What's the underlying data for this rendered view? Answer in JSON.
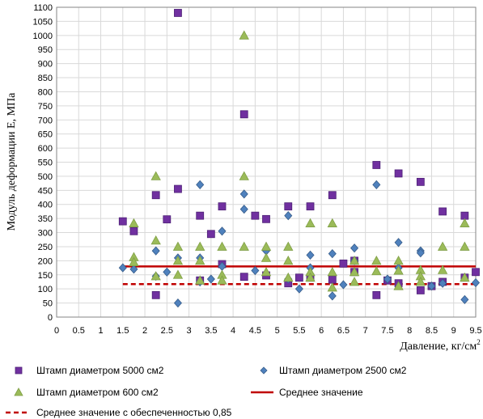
{
  "chart_data": {
    "type": "scatter",
    "xlabel": "Давление, кг/см",
    "xlabel_sup": "2",
    "ylabel": "Модуль деформации Е, МПа",
    "xlim": [
      0,
      9.5
    ],
    "ylim": [
      0,
      1100
    ],
    "x_ticks": [
      "0",
      "0.5",
      "1",
      "1.5",
      "2",
      "2.5",
      "3",
      "3.5",
      "4",
      "4.5",
      "5",
      "5.5",
      "6",
      "6.5",
      "7",
      "7.5",
      "8",
      "8.5",
      "9",
      "9.5"
    ],
    "y_ticks": [
      "0",
      "50",
      "100",
      "150",
      "200",
      "250",
      "300",
      "350",
      "400",
      "450",
      "500",
      "550",
      "600",
      "650",
      "700",
      "750",
      "800",
      "850",
      "900",
      "950",
      "1000",
      "1050",
      "1100"
    ],
    "grid": "vertical and horizontal gridlines",
    "legend_position": "bottom",
    "series": [
      {
        "name": "Штамп диаметром 5000 см2",
        "marker": "square",
        "color": "#7030a0",
        "stroke": "#4e2276",
        "points": [
          [
            1.5,
            340
          ],
          [
            1.75,
            305
          ],
          [
            2.25,
            433
          ],
          [
            2.25,
            78
          ],
          [
            2.5,
            347
          ],
          [
            2.75,
            1080
          ],
          [
            2.75,
            455
          ],
          [
            3.25,
            360
          ],
          [
            3.25,
            130
          ],
          [
            3.5,
            295
          ],
          [
            3.75,
            393
          ],
          [
            3.75,
            188
          ],
          [
            4.25,
            720
          ],
          [
            4.25,
            143
          ],
          [
            4.5,
            360
          ],
          [
            4.75,
            348
          ],
          [
            4.75,
            148
          ],
          [
            5.25,
            393
          ],
          [
            5.25,
            120
          ],
          [
            5.5,
            140
          ],
          [
            5.75,
            393
          ],
          [
            5.75,
            140
          ],
          [
            6.25,
            433
          ],
          [
            6.25,
            133
          ],
          [
            6.5,
            190
          ],
          [
            6.75,
            200
          ],
          [
            6.75,
            160
          ],
          [
            7.25,
            540
          ],
          [
            7.25,
            78
          ],
          [
            7.5,
            130
          ],
          [
            7.75,
            510
          ],
          [
            7.75,
            120
          ],
          [
            8.25,
            480
          ],
          [
            8.25,
            95
          ],
          [
            8.5,
            110
          ],
          [
            8.75,
            375
          ],
          [
            8.75,
            125
          ],
          [
            9.25,
            360
          ],
          [
            9.25,
            140
          ],
          [
            9.5,
            160
          ]
        ]
      },
      {
        "name": "Штамп диаметром 2500 см2",
        "marker": "diamond",
        "color": "#4f81bd",
        "stroke": "#385d8a",
        "points": [
          [
            1.5,
            175
          ],
          [
            1.75,
            170
          ],
          [
            2.25,
            235
          ],
          [
            2.25,
            145
          ],
          [
            2.5,
            160
          ],
          [
            2.75,
            210
          ],
          [
            2.75,
            50
          ],
          [
            3.25,
            470
          ],
          [
            3.25,
            210
          ],
          [
            3.25,
            125
          ],
          [
            3.5,
            135
          ],
          [
            3.75,
            305
          ],
          [
            3.75,
            180
          ],
          [
            4.25,
            437
          ],
          [
            4.25,
            383
          ],
          [
            4.5,
            165
          ],
          [
            4.75,
            235
          ],
          [
            5.25,
            360
          ],
          [
            5.25,
            135
          ],
          [
            5.5,
            100
          ],
          [
            5.75,
            220
          ],
          [
            5.75,
            175
          ],
          [
            6.25,
            225
          ],
          [
            6.25,
            75
          ],
          [
            6.5,
            115
          ],
          [
            6.75,
            245
          ],
          [
            6.75,
            200
          ],
          [
            7.25,
            470
          ],
          [
            7.5,
            135
          ],
          [
            7.75,
            265
          ],
          [
            7.75,
            175
          ],
          [
            8.25,
            235
          ],
          [
            8.25,
            228
          ],
          [
            8.5,
            110
          ],
          [
            8.75,
            120
          ],
          [
            9.25,
            62
          ],
          [
            9.5,
            122
          ]
        ]
      },
      {
        "name": "Штамп диаметром 600 см2",
        "marker": "triangle",
        "color": "#9bbb59",
        "stroke": "#7f9f45",
        "points": [
          [
            1.75,
            333
          ],
          [
            1.75,
            213
          ],
          [
            1.75,
            195
          ],
          [
            2.25,
            500
          ],
          [
            2.25,
            272
          ],
          [
            2.25,
            145
          ],
          [
            2.75,
            250
          ],
          [
            2.75,
            200
          ],
          [
            2.75,
            150
          ],
          [
            3.25,
            250
          ],
          [
            3.25,
            200
          ],
          [
            3.25,
            130
          ],
          [
            3.75,
            250
          ],
          [
            3.75,
            150
          ],
          [
            3.75,
            130
          ],
          [
            4.25,
            1000
          ],
          [
            4.25,
            500
          ],
          [
            4.25,
            250
          ],
          [
            4.75,
            250
          ],
          [
            4.75,
            210
          ],
          [
            4.75,
            160
          ],
          [
            5.25,
            250
          ],
          [
            5.25,
            200
          ],
          [
            5.25,
            140
          ],
          [
            5.75,
            333
          ],
          [
            5.75,
            160
          ],
          [
            5.75,
            140
          ],
          [
            6.25,
            333
          ],
          [
            6.25,
            160
          ],
          [
            6.25,
            105
          ],
          [
            6.75,
            200
          ],
          [
            6.75,
            160
          ],
          [
            6.75,
            125
          ],
          [
            7.25,
            200
          ],
          [
            7.25,
            163
          ],
          [
            7.75,
            200
          ],
          [
            7.75,
            165
          ],
          [
            7.75,
            110
          ],
          [
            8.25,
            167
          ],
          [
            8.25,
            145
          ],
          [
            8.25,
            125
          ],
          [
            8.75,
            250
          ],
          [
            8.75,
            167
          ],
          [
            9.25,
            333
          ],
          [
            9.25,
            250
          ],
          [
            9.25,
            140
          ]
        ]
      },
      {
        "name": "Среднее значение",
        "type": "line",
        "color": "#c00000",
        "dash": "solid",
        "x": [
          1.5,
          9.5
        ],
        "values": [
          180,
          180
        ]
      },
      {
        "name": "Среднее значение с обеспеченностью 0,85",
        "type": "line",
        "color": "#c00000",
        "dash": "dashed",
        "x": [
          1.5,
          9.5
        ],
        "values": [
          117,
          117
        ]
      }
    ]
  }
}
